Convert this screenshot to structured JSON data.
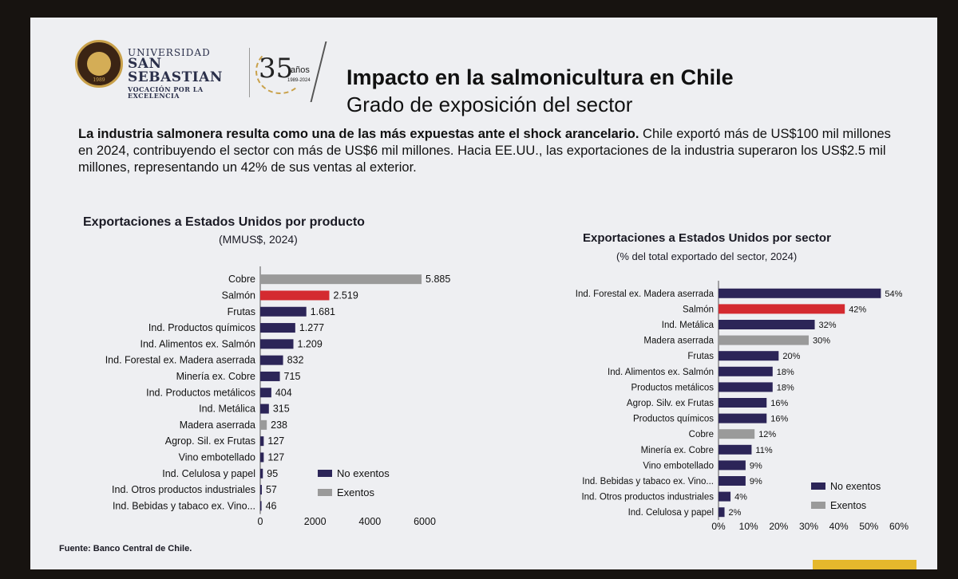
{
  "header": {
    "university_line1": "UNIVERSIDAD",
    "university_line2": "SAN SEBASTIAN",
    "university_tagline": "VOCACIÓN POR LA EXCELENCIA",
    "seal_year": "1989",
    "anniversary_number": "35",
    "anniversary_word": "años",
    "anniversary_years": "1989-2024",
    "title": "Impacto en la salmonicultura en Chile",
    "subtitle": "Grado de exposición del sector"
  },
  "body": {
    "bold_text": "La industria salmonera resulta como una de las más expuestas ante el shock arancelario.",
    "text": " Chile exportó más de US$100 mil millones en 2024, contribuyendo el sector con más de US$6 mil millones. Hacia EE.UU., las exportaciones de la industria superaron los US$2.5 mil millones, representando un 42% de sus ventas al exterior."
  },
  "colors": {
    "highlight": "#d42a30",
    "no_exentos": "#2c2558",
    "exentos": "#9a9a9a"
  },
  "chart_data": [
    {
      "type": "bar",
      "orientation": "horizontal",
      "title": "Exportaciones a Estados Unidos por producto",
      "subtitle": "(MMUS$, 2024)",
      "categories": [
        "Cobre",
        "Salmón",
        "Frutas",
        "Ind. Productos químicos",
        "Ind. Alimentos ex. Salmón",
        "Ind. Forestal ex. Madera aserrada",
        "Minería ex. Cobre",
        "Ind. Productos metálicos",
        "Ind. Metálica",
        "Madera aserrada",
        "Agrop. Sil. ex Frutas",
        "Vino embotellado",
        "Ind. Celulosa y papel",
        "Ind. Otros productos industriales",
        "Ind. Bebidas y tabaco ex. Vino..."
      ],
      "values": [
        5885,
        2519,
        1681,
        1277,
        1209,
        832,
        715,
        404,
        315,
        238,
        127,
        127,
        95,
        57,
        46
      ],
      "value_labels": [
        "5.885",
        "2.519",
        "1.681",
        "1.277",
        "1.209",
        "832",
        "715",
        "404",
        "315",
        "238",
        "127",
        "127",
        "95",
        "57",
        "46"
      ],
      "groups": [
        "exento",
        "salmon",
        "no_exento",
        "no_exento",
        "no_exento",
        "no_exento",
        "no_exento",
        "no_exento",
        "no_exento",
        "exento",
        "no_exento",
        "no_exento",
        "no_exento",
        "no_exento",
        "no_exento"
      ],
      "xlim": [
        0,
        6000
      ],
      "xticks": [
        "0",
        "2000",
        "4000",
        "6000"
      ],
      "legend": [
        "No exentos",
        "Exentos"
      ],
      "legend_position": "bottom-right"
    },
    {
      "type": "bar",
      "orientation": "horizontal",
      "title": "Exportaciones a Estados Unidos por sector",
      "subtitle": "(% del total exportado del sector, 2024)",
      "categories": [
        "Ind. Forestal ex. Madera aserrada",
        "Salmón",
        "Ind. Metálica",
        "Madera aserrada",
        "Frutas",
        "Ind. Alimentos ex. Salmón",
        "Productos metálicos",
        "Agrop. Silv. ex Frutas",
        "Productos químicos",
        "Cobre",
        "Minería ex. Cobre",
        "Vino embotellado",
        "Ind. Bebidas y tabaco ex. Vino...",
        "Ind. Otros productos industriales",
        "Ind. Celulosa y papel"
      ],
      "values": [
        54,
        42,
        32,
        30,
        20,
        18,
        18,
        16,
        16,
        12,
        11,
        9,
        9,
        4,
        2
      ],
      "value_labels": [
        "54%",
        "42%",
        "32%",
        "30%",
        "20%",
        "18%",
        "18%",
        "16%",
        "16%",
        "12%",
        "11%",
        "9%",
        "9%",
        "4%",
        "2%"
      ],
      "groups": [
        "no_exento",
        "salmon",
        "no_exento",
        "exento",
        "no_exento",
        "no_exento",
        "no_exento",
        "no_exento",
        "no_exento",
        "exento",
        "no_exento",
        "no_exento",
        "no_exento",
        "no_exento",
        "no_exento"
      ],
      "xlim": [
        0,
        60
      ],
      "xticks": [
        "0%",
        "10%",
        "20%",
        "30%",
        "40%",
        "50%",
        "60%"
      ],
      "legend": [
        "No exentos",
        "Exentos"
      ],
      "legend_position": "bottom-right"
    }
  ],
  "footer": {
    "source": "Fuente: Banco Central de Chile."
  }
}
